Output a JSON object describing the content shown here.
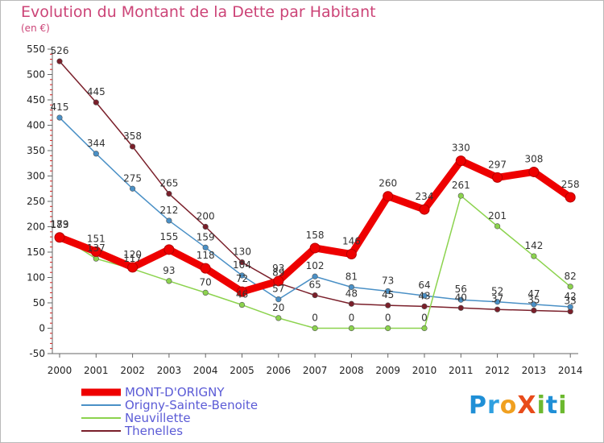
{
  "header": {
    "title": "Evolution du Montant de la Dette par Habitant",
    "unit": "(en €)"
  },
  "logo": {
    "text": "ProXiti",
    "letters": [
      {
        "ch": "P",
        "color": "#1f8fd6"
      },
      {
        "ch": "r",
        "color": "#2fa0e0"
      },
      {
        "ch": "o",
        "color": "#f0a020"
      },
      {
        "ch": "X",
        "color": "#e84b1a"
      },
      {
        "ch": "i",
        "color": "#6cb92f"
      },
      {
        "ch": "t",
        "color": "#1f8fd6"
      },
      {
        "ch": "i",
        "color": "#6cb92f"
      }
    ]
  },
  "chart_data": {
    "type": "line",
    "title": "Evolution du Montant de la Dette par Habitant",
    "ylabel": "(en €)",
    "xlabel": "",
    "x": [
      "2000",
      "2001",
      "2002",
      "2003",
      "2004",
      "2005",
      "2006",
      "2007",
      "2008",
      "2009",
      "2010",
      "2011",
      "2012",
      "2013",
      "2014"
    ],
    "ylim": [
      -50,
      550
    ],
    "yticks": [
      -50,
      0,
      50,
      100,
      150,
      200,
      250,
      300,
      350,
      400,
      450,
      500,
      550
    ],
    "grid": false,
    "legend_position": "bottom-left",
    "series": [
      {
        "name": "MONT-D'ORIGNY",
        "color": "#ee0000",
        "values": [
          179,
          151,
          120,
          155,
          118,
          72,
          93,
          158,
          146,
          260,
          234,
          330,
          297,
          308,
          258
        ]
      },
      {
        "name": "Origny-Sainte-Benoite",
        "color": "#4a90c6",
        "values": [
          415,
          344,
          275,
          212,
          159,
          104,
          57,
          102,
          81,
          73,
          64,
          56,
          52,
          47,
          42
        ]
      },
      {
        "name": "Neuvillette",
        "color": "#8cd34e",
        "values": [
          183,
          137,
          117,
          93,
          70,
          46,
          20,
          0,
          0,
          0,
          0,
          261,
          201,
          142,
          82
        ]
      },
      {
        "name": "Thenelles",
        "color": "#7a1f2a",
        "values": [
          526,
          445,
          358,
          265,
          200,
          130,
          89,
          65,
          48,
          45,
          43,
          40,
          37,
          35,
          33
        ]
      }
    ]
  }
}
